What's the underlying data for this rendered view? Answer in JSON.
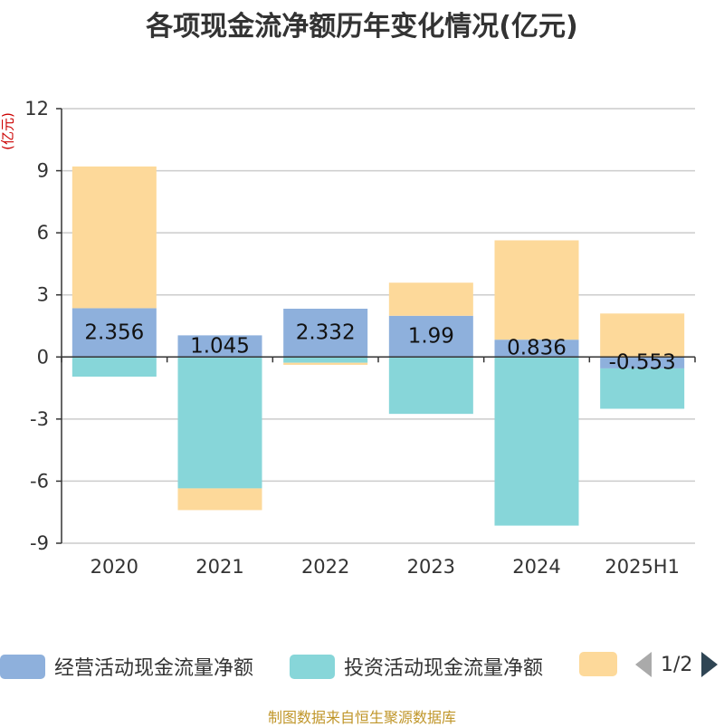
{
  "chart_data": {
    "type": "bar",
    "stacked": true,
    "title": "各项现金流净额历年变化情况(亿元)",
    "ylabel": "(亿元)",
    "categories": [
      "2020",
      "2021",
      "2022",
      "2023",
      "2024",
      "2025H1"
    ],
    "y_ticks": [
      "12",
      "9",
      "6",
      "3",
      "0",
      "-3",
      "-6",
      "-9"
    ],
    "ylim": [
      -9,
      12
    ],
    "grid": true,
    "legend_position": "bottom",
    "series": [
      {
        "name": "经营活动现金流量净额",
        "color": "#8eb0dc",
        "values": [
          2.356,
          1.045,
          2.332,
          1.99,
          0.836,
          -0.553
        ],
        "labels": [
          "2.356",
          "1.045",
          "2.332",
          "1.99",
          "0.836",
          "-0.553"
        ]
      },
      {
        "name": "投资活动现金流量净额",
        "color": "#87d6d9",
        "values": [
          -0.95,
          -6.35,
          -0.28,
          -2.75,
          -8.15,
          -1.95
        ]
      },
      {
        "name": "",
        "color": "#fdd99a",
        "values": [
          6.85,
          -1.05,
          -0.1,
          1.6,
          4.8,
          2.1
        ]
      }
    ]
  },
  "legend": {
    "page_indicator": "1/2"
  },
  "source_note": "制图数据来自恒生聚源数据库"
}
